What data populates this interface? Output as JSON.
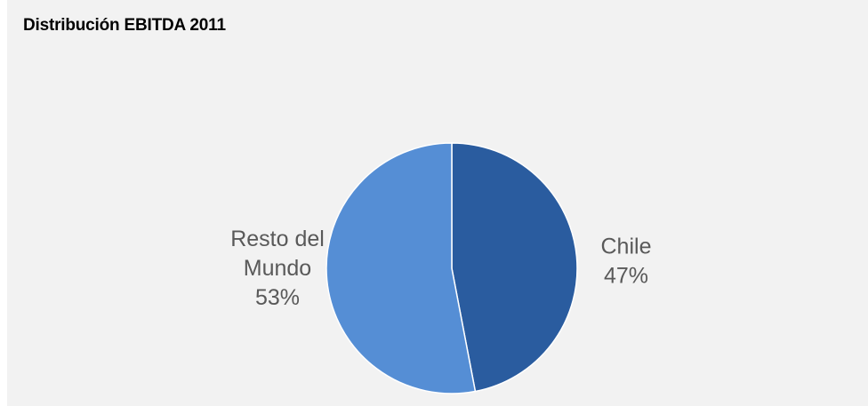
{
  "chart_data": {
    "type": "pie",
    "title": "Distribución EBITDA 2011",
    "slices": [
      {
        "label_lines": [
          "Chile"
        ],
        "value": 47,
        "value_label": "47%",
        "color": "#2a5c9f"
      },
      {
        "label_lines": [
          "Resto del",
          "Mundo"
        ],
        "value": 53,
        "value_label": "53%",
        "color": "#558ed5"
      }
    ]
  }
}
